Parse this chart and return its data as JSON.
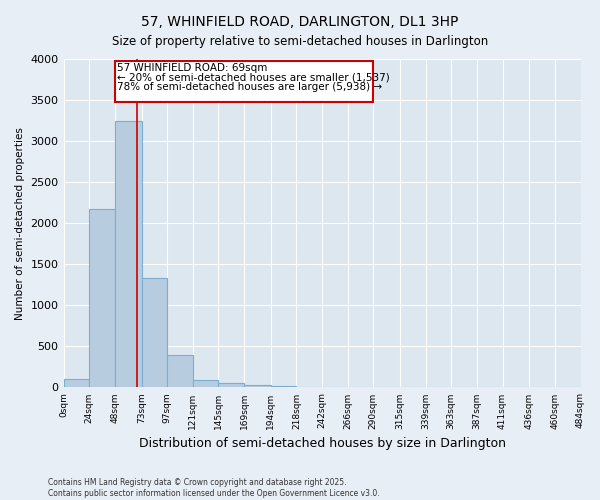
{
  "title": "57, WHINFIELD ROAD, DARLINGTON, DL1 3HP",
  "subtitle": "Size of property relative to semi-detached houses in Darlington",
  "xlabel": "Distribution of semi-detached houses by size in Darlington",
  "ylabel": "Number of semi-detached properties",
  "property_size": 69,
  "property_label": "57 WHINFIELD ROAD: 69sqm",
  "smaller_pct": "20%",
  "smaller_count": "1,537",
  "larger_pct": "78%",
  "larger_count": "5,938",
  "bin_edges": [
    0,
    24,
    48,
    73,
    97,
    121,
    145,
    169,
    194,
    218,
    242,
    266,
    290,
    315,
    339,
    363,
    387,
    411,
    436,
    460,
    484
  ],
  "bar_heights": [
    100,
    2170,
    3250,
    1330,
    390,
    90,
    50,
    30,
    20,
    10,
    8,
    5,
    3,
    2,
    2,
    1,
    1,
    1,
    1,
    0
  ],
  "bar_color": "#b8ccdf",
  "bar_edgecolor": "#7aafd4",
  "redline_color": "#cc0000",
  "annotation_box_color": "#cc0000",
  "background_color": "#e8eef5",
  "plot_bg_color": "#dce7f0",
  "ylim": [
    0,
    4000
  ],
  "yticks": [
    0,
    500,
    1000,
    1500,
    2000,
    2500,
    3000,
    3500,
    4000
  ],
  "footer": "Contains HM Land Registry data © Crown copyright and database right 2025.\nContains public sector information licensed under the Open Government Licence v3.0.",
  "tick_labels": [
    "0sqm",
    "24sqm",
    "48sqm",
    "73sqm",
    "97sqm",
    "121sqm",
    "145sqm",
    "169sqm",
    "194sqm",
    "218sqm",
    "242sqm",
    "266sqm",
    "290sqm",
    "315sqm",
    "339sqm",
    "363sqm",
    "387sqm",
    "411sqm",
    "436sqm",
    "460sqm",
    "484sqm"
  ]
}
